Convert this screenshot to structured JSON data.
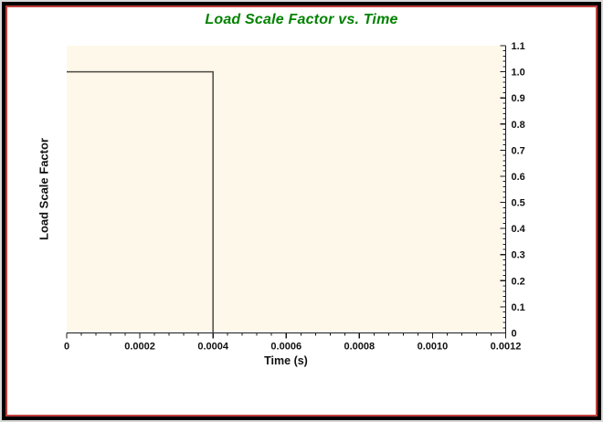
{
  "window": {
    "frame_colors": {
      "outer_gray": "#d8d8d8",
      "black": "#000000",
      "red_inner_line": "#c0413d"
    },
    "background": "#ffffff"
  },
  "chart": {
    "title": "Load Scale Factor vs. Time",
    "title_color": "#008200",
    "xlabel": "Time (s)",
    "ylabel": "Load Scale Factor",
    "plot_bg": "#fdf8e9",
    "line_color": "#4d4a43",
    "axis_color": "#1a1a1a",
    "tick_label_color": "#111111"
  },
  "chart_data": {
    "type": "line",
    "subtype": "step",
    "title": "Load Scale Factor vs. Time",
    "xlabel": "Time (s)",
    "ylabel": "Load Scale Factor",
    "xlim": [
      0,
      0.0012
    ],
    "ylim": [
      0,
      1.1
    ],
    "x_ticks": [
      0,
      0.0002,
      0.0004,
      0.0006,
      0.0008,
      0.001,
      0.0012
    ],
    "x_tick_labels": [
      "0",
      "0.0002",
      "0.0004",
      "0.0006",
      "0.0008",
      "0.0010",
      "0.0012"
    ],
    "y_ticks": [
      0,
      0.1,
      0.2,
      0.3,
      0.4,
      0.5,
      0.6,
      0.7,
      0.8,
      0.9,
      1.0,
      1.1
    ],
    "y_tick_labels": [
      "0",
      "0.1",
      "0.2",
      "0.3",
      "0.4",
      "0.5",
      "0.6",
      "0.7",
      "0.8",
      "0.9",
      "1.0",
      "1.1"
    ],
    "x_minor_step": 4e-05,
    "y_minor_step": 0.02,
    "grid": false,
    "legend_position": "none",
    "y_axis_side": "right",
    "series": [
      {
        "name": "Load Scale Factor",
        "points": [
          [
            0,
            1.0
          ],
          [
            0.0004,
            1.0
          ],
          [
            0.0004,
            0
          ]
        ]
      }
    ]
  }
}
